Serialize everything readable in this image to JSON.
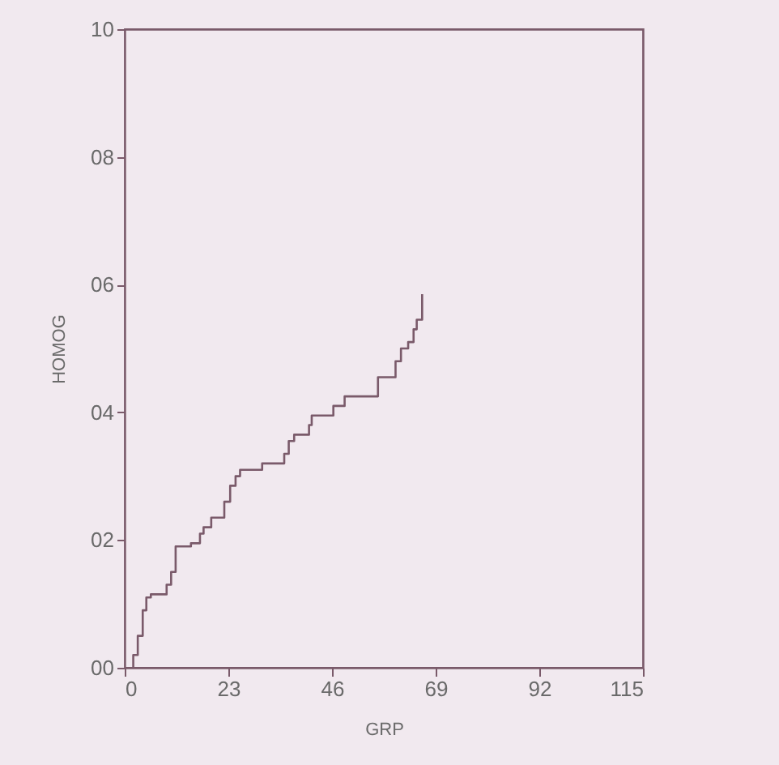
{
  "chart_data": {
    "type": "step",
    "xlabel": "GRP",
    "ylabel": "HOMOG",
    "xlim": [
      0,
      115
    ],
    "xticks": [
      0,
      23,
      46,
      69,
      92,
      115
    ],
    "ylim": [
      0,
      10
    ],
    "yticks": [
      {
        "value": 0,
        "label": "00"
      },
      {
        "value": 2,
        "label": "02"
      },
      {
        "value": 4,
        "label": "04"
      },
      {
        "value": 6,
        "label": "06"
      },
      {
        "value": 8,
        "label": "08"
      },
      10
    ],
    "grid": false,
    "series": [
      {
        "color": "#7a5a6a",
        "x": [
          1.9,
          1.9,
          2.9,
          4.0,
          4.8,
          5.8,
          9.3,
          10.3,
          11.3,
          14.7,
          16.7,
          17.5,
          19.2,
          22.1,
          23.4,
          24.6,
          25.6,
          30.5,
          35.4,
          36.4,
          37.6,
          40.9,
          41.5,
          46.3,
          48.8,
          56.2,
          60.1,
          61.3,
          62.9,
          64.1,
          64.8,
          66.0
        ],
        "values": [
          0,
          0.2,
          0.5,
          0.9,
          1.1,
          1.15,
          1.3,
          1.5,
          1.9,
          1.95,
          2.1,
          2.2,
          2.35,
          2.6,
          2.85,
          3.0,
          3.1,
          3.2,
          3.35,
          3.55,
          3.65,
          3.8,
          3.95,
          4.1,
          4.25,
          4.55,
          4.8,
          5.0,
          5.1,
          5.3,
          5.45,
          5.85
        ]
      }
    ]
  }
}
